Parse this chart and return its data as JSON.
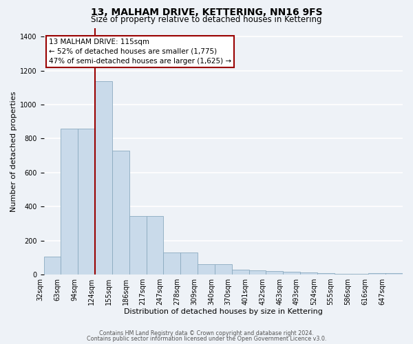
{
  "title": "13, MALHAM DRIVE, KETTERING, NN16 9FS",
  "subtitle": "Size of property relative to detached houses in Kettering",
  "xlabel": "Distribution of detached houses by size in Kettering",
  "ylabel": "Number of detached properties",
  "bar_labels": [
    "32sqm",
    "63sqm",
    "94sqm",
    "124sqm",
    "155sqm",
    "186sqm",
    "217sqm",
    "247sqm",
    "278sqm",
    "309sqm",
    "340sqm",
    "370sqm",
    "401sqm",
    "432sqm",
    "463sqm",
    "493sqm",
    "524sqm",
    "555sqm",
    "586sqm",
    "616sqm",
    "647sqm"
  ],
  "bar_values": [
    105,
    860,
    860,
    1140,
    730,
    345,
    345,
    130,
    130,
    60,
    60,
    30,
    25,
    20,
    15,
    12,
    8,
    5,
    5,
    8,
    8
  ],
  "bar_color": "#c9daea",
  "bar_edge_color": "#8aaabf",
  "vline_x_idx": 3,
  "vline_color": "#990000",
  "annotation_title": "13 MALHAM DRIVE: 115sqm",
  "annotation_line1": "← 52% of detached houses are smaller (1,775)",
  "annotation_line2": "47% of semi-detached houses are larger (1,625) →",
  "annotation_box_facecolor": "#ffffff",
  "annotation_box_edgecolor": "#990000",
  "ylim": [
    0,
    1450
  ],
  "yticks": [
    0,
    200,
    400,
    600,
    800,
    1000,
    1200,
    1400
  ],
  "footer1": "Contains HM Land Registry data © Crown copyright and database right 2024.",
  "footer2": "Contains public sector information licensed under the Open Government Licence v3.0.",
  "background_color": "#eef2f7",
  "grid_color": "#ffffff",
  "title_fontsize": 10,
  "subtitle_fontsize": 8.5,
  "ylabel_fontsize": 8,
  "xlabel_fontsize": 8,
  "tick_fontsize": 7,
  "annotation_fontsize": 7.5
}
